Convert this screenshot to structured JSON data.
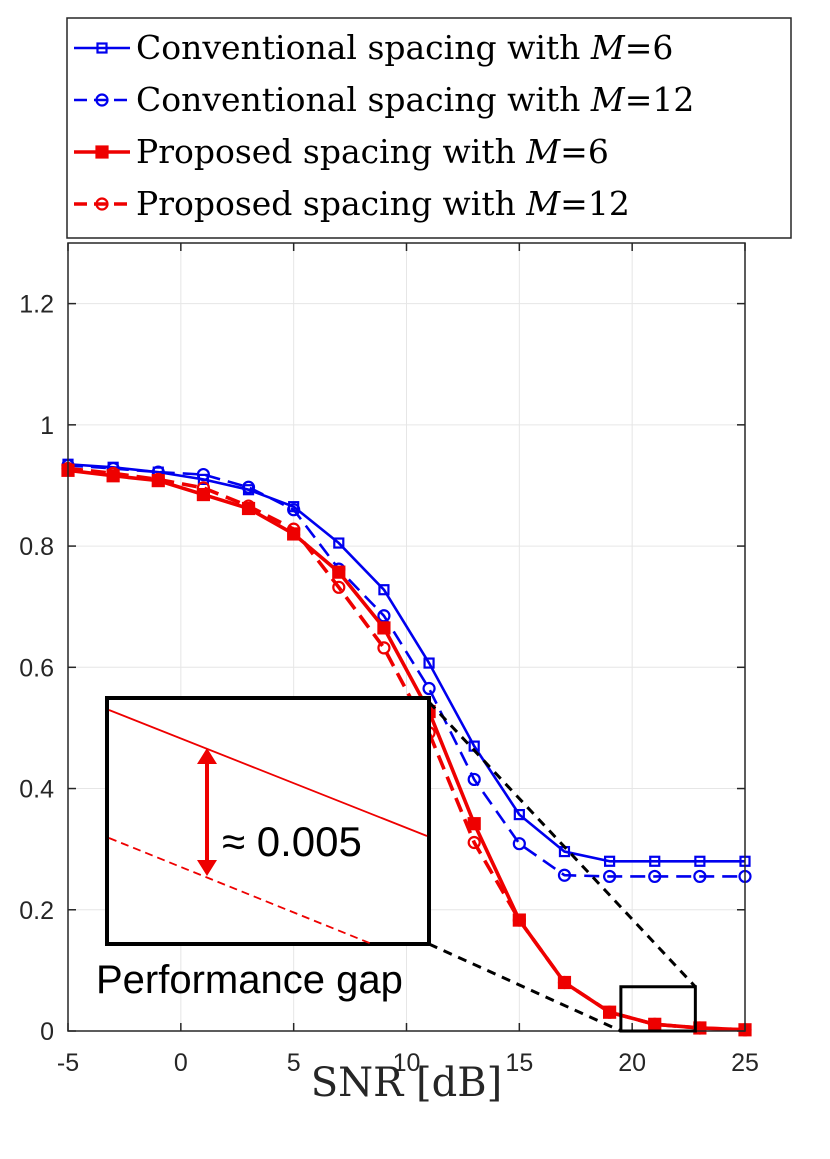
{
  "chart_data": {
    "type": "line",
    "title": "",
    "xlabel": "SNR [dB]",
    "ylabel": "",
    "xlim": [
      -5,
      25
    ],
    "ylim": [
      0,
      1.3
    ],
    "x_ticks": [
      -5,
      0,
      5,
      10,
      15,
      20,
      25
    ],
    "x_tick_labels": [
      "-5",
      "0",
      "5",
      "10",
      "15",
      "20",
      "25"
    ],
    "y_ticks": [
      0,
      0.2,
      0.4,
      0.6,
      0.8,
      1,
      1.2
    ],
    "y_tick_labels": [
      "0",
      "0.2",
      "0.4",
      "0.6",
      "0.8",
      "1",
      "1.2"
    ],
    "grid": true,
    "legend_position": "top",
    "x": [
      -5,
      -3,
      -1,
      1,
      3,
      5,
      7,
      9,
      11,
      13,
      15,
      17,
      19,
      21,
      23,
      25
    ],
    "series": [
      {
        "name": "Conventional spacing with M=6",
        "label_prefix": "Conventional spacing with ",
        "label_var": "M",
        "label_value": "=6",
        "color": "#0000ee",
        "line_style": "solid",
        "marker": "square-open",
        "values": [
          0.935,
          0.93,
          0.922,
          0.91,
          0.893,
          0.865,
          0.805,
          0.728,
          0.607,
          0.47,
          0.357,
          0.296,
          0.28,
          0.28,
          0.28,
          0.28
        ]
      },
      {
        "name": "Conventional spacing with M=12",
        "label_prefix": "Conventional spacing with ",
        "label_var": "M",
        "label_value": "=12",
        "color": "#0000ee",
        "line_style": "dashed",
        "marker": "circle-open",
        "values": [
          0.933,
          0.928,
          0.922,
          0.918,
          0.897,
          0.86,
          0.762,
          0.685,
          0.565,
          0.415,
          0.309,
          0.257,
          0.255,
          0.255,
          0.255,
          0.255
        ]
      },
      {
        "name": "Proposed spacing with M=6",
        "label_prefix": "Proposed spacing with ",
        "label_var": "M",
        "label_value": "=6",
        "color": "#ee0000",
        "line_style": "solid",
        "marker": "square-filled",
        "values": [
          0.925,
          0.916,
          0.908,
          0.885,
          0.862,
          0.82,
          0.757,
          0.665,
          0.527,
          0.342,
          0.183,
          0.08,
          0.031,
          0.011,
          0.005,
          0.002
        ]
      },
      {
        "name": "Proposed spacing with M=12",
        "label_prefix": "Proposed spacing with ",
        "label_var": "M",
        "label_value": "=12",
        "color": "#ee0000",
        "line_style": "dashed",
        "marker": "circle-open",
        "values": [
          0.928,
          0.92,
          0.91,
          0.896,
          0.866,
          0.828,
          0.732,
          0.632,
          0.492,
          0.311,
          0.183,
          0.08,
          0.031,
          0.011,
          0.005,
          0.002
        ]
      }
    ],
    "annotations": {
      "inset_label": "Performance gap",
      "gap_label": "≈ 0.005",
      "zoom_box_x": [
        19.5,
        22.8
      ],
      "zoom_box_y": [
        0,
        0.073
      ]
    }
  }
}
